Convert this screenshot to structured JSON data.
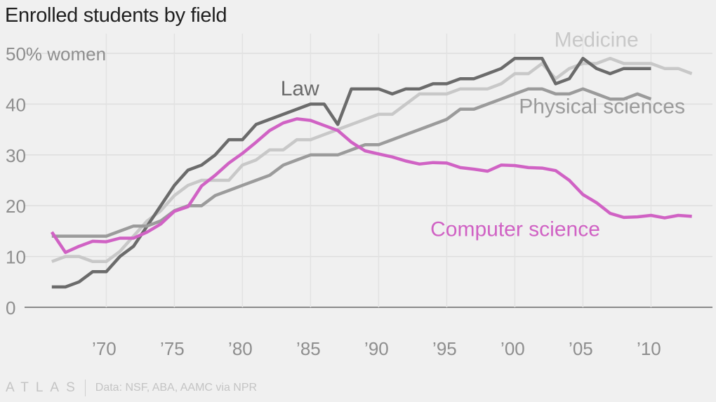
{
  "chart_data": {
    "type": "line",
    "title": "Enrolled students by field",
    "ylabel": "% women",
    "xlabel": "",
    "xlim": [
      1964,
      2014
    ],
    "ylim": [
      0,
      50
    ],
    "yticks": [
      {
        "value": 0,
        "label": "0"
      },
      {
        "value": 10,
        "label": "10"
      },
      {
        "value": 20,
        "label": "20"
      },
      {
        "value": 30,
        "label": "30"
      },
      {
        "value": 40,
        "label": "40"
      },
      {
        "value": 50,
        "label": "50% women"
      }
    ],
    "xticks": [
      {
        "value": 1970,
        "label": "’70"
      },
      {
        "value": 1975,
        "label": "’75"
      },
      {
        "value": 1980,
        "label": "’80"
      },
      {
        "value": 1985,
        "label": "’85"
      },
      {
        "value": 1990,
        "label": "’90"
      },
      {
        "value": 1995,
        "label": "’95"
      },
      {
        "value": 2000,
        "label": "’00"
      },
      {
        "value": 2005,
        "label": "’05"
      },
      {
        "value": 2010,
        "label": "’10"
      }
    ],
    "grid": true,
    "series": [
      {
        "name": "Medicine",
        "color": "#c8c8c8",
        "label_anchor": {
          "x": 2002.9,
          "y": 51.3
        },
        "x": [
          1966,
          1967,
          1968,
          1969,
          1970,
          1971,
          1972,
          1973,
          1974,
          1975,
          1976,
          1977,
          1978,
          1979,
          1980,
          1981,
          1982,
          1983,
          1984,
          1985,
          1986,
          1987,
          1988,
          1989,
          1990,
          1991,
          1992,
          1993,
          1994,
          1995,
          1996,
          1997,
          1998,
          1999,
          2000,
          2001,
          2002,
          2003,
          2004,
          2005,
          2006,
          2007,
          2008,
          2009,
          2010,
          2011,
          2012,
          2013
        ],
        "y": [
          9,
          10,
          10,
          9,
          9,
          11,
          14,
          17,
          19,
          22,
          24,
          25,
          25,
          25,
          28,
          29,
          31,
          31,
          33,
          33,
          34,
          35,
          36,
          37,
          38,
          38,
          40,
          42,
          42,
          42,
          43,
          43,
          43,
          44,
          46,
          46,
          48,
          45,
          47,
          48,
          48,
          49,
          48,
          48,
          48,
          47,
          47,
          46
        ]
      },
      {
        "name": "Law",
        "color": "#6b6b6b",
        "label_anchor": {
          "x": 1982.8,
          "y": 41.7
        },
        "x": [
          1966,
          1967,
          1968,
          1969,
          1970,
          1971,
          1972,
          1973,
          1974,
          1975,
          1976,
          1977,
          1978,
          1979,
          1980,
          1981,
          1982,
          1983,
          1984,
          1985,
          1986,
          1987,
          1988,
          1989,
          1990,
          1991,
          1992,
          1993,
          1994,
          1995,
          1996,
          1997,
          1998,
          1999,
          2000,
          2001,
          2002,
          2003,
          2004,
          2005,
          2006,
          2007,
          2008,
          2009,
          2010
        ],
        "y": [
          4,
          4,
          5,
          7,
          7,
          10,
          12,
          16,
          20,
          24,
          27,
          28,
          30,
          33,
          33,
          36,
          37,
          38,
          39,
          40,
          40,
          36,
          43,
          43,
          43,
          42,
          43,
          43,
          44,
          44,
          45,
          45,
          46,
          47,
          49,
          49,
          49,
          44,
          45,
          49,
          47,
          46,
          47,
          47,
          47
        ]
      },
      {
        "name": "Physical sciences",
        "color": "#9b9b9b",
        "label_anchor": {
          "x": 2000.3,
          "y": 38.2
        },
        "x": [
          1966,
          1967,
          1968,
          1969,
          1970,
          1971,
          1972,
          1973,
          1974,
          1975,
          1976,
          1977,
          1978,
          1979,
          1980,
          1981,
          1982,
          1983,
          1984,
          1985,
          1986,
          1987,
          1988,
          1989,
          1990,
          1991,
          1992,
          1993,
          1994,
          1995,
          1996,
          1997,
          1998,
          1999,
          2000,
          2001,
          2002,
          2003,
          2004,
          2005,
          2006,
          2007,
          2008,
          2009,
          2010
        ],
        "y": [
          14,
          14,
          14,
          14,
          14,
          15,
          16,
          16,
          17,
          19,
          20,
          20,
          22,
          23,
          24,
          25,
          26,
          28,
          29,
          30,
          30,
          30,
          31,
          32,
          32,
          33,
          34,
          35,
          36,
          37,
          39,
          39,
          40,
          41,
          42,
          43,
          43,
          42,
          42,
          43,
          42,
          41,
          41,
          42,
          41
        ]
      },
      {
        "name": "Computer science",
        "color": "#d062c4",
        "label_anchor": {
          "x": 1993.8,
          "y": 14.0
        },
        "x": [
          1966,
          1967,
          1968,
          1969,
          1970,
          1971,
          1972,
          1973,
          1974,
          1975,
          1976,
          1977,
          1978,
          1979,
          1980,
          1981,
          1982,
          1983,
          1984,
          1985,
          1986,
          1987,
          1988,
          1989,
          1990,
          1991,
          1992,
          1993,
          1994,
          1995,
          1996,
          1997,
          1998,
          1999,
          2000,
          2001,
          2002,
          2003,
          2004,
          2005,
          2006,
          2007,
          2008,
          2009,
          2010,
          2011,
          2012,
          2013
        ],
        "y": [
          14.8,
          10.8,
          12,
          13,
          12.9,
          13.6,
          13.6,
          14.8,
          16.4,
          18.9,
          19.8,
          23.9,
          26,
          28.4,
          30.3,
          32.5,
          34.8,
          36.3,
          37.1,
          36.8,
          35.8,
          34.8,
          32.5,
          30.8,
          30.2,
          29.6,
          28.8,
          28.2,
          28.5,
          28.4,
          27.5,
          27.2,
          26.8,
          28,
          27.9,
          27.5,
          27.4,
          26.9,
          25,
          22.2,
          20.6,
          18.5,
          17.7,
          17.8,
          18.1,
          17.6,
          18.1,
          17.9
        ]
      }
    ]
  },
  "footer": {
    "brand": "ATLAS",
    "source": "Data: NSF, ABA, AAMC via NPR"
  }
}
